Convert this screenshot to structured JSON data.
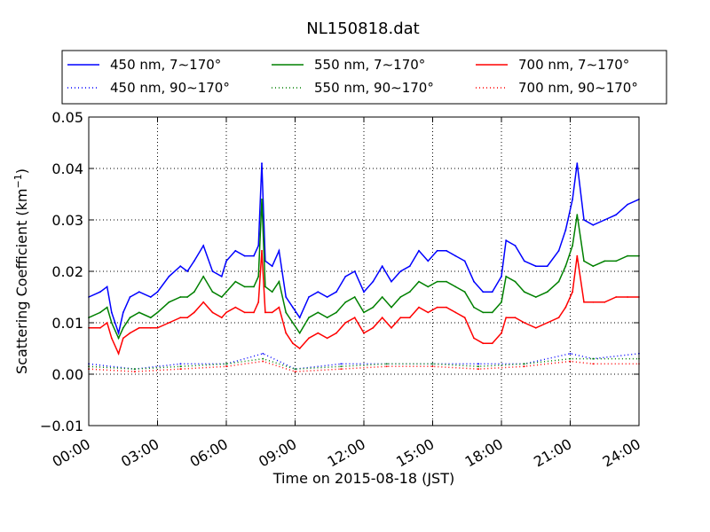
{
  "chart_data": {
    "type": "line",
    "title": "NL150818.dat",
    "xlabel": "Time on 2015-08-18 (JST)",
    "ylabel": "Scattering Coefficient (km",
    "ylabel_sup": "−1",
    "ylabel_close": ")",
    "x_unit": "hours since 00:00 JST",
    "xlim": [
      0,
      24
    ],
    "ylim": [
      -0.01,
      0.05
    ],
    "xticks": [
      0,
      3,
      6,
      9,
      12,
      15,
      18,
      21,
      24
    ],
    "xticklabels": [
      "00:00",
      "03:00",
      "06:00",
      "09:00",
      "12:00",
      "15:00",
      "18:00",
      "21:00",
      "24:00"
    ],
    "yticks": [
      -0.01,
      0.0,
      0.01,
      0.02,
      0.03,
      0.04,
      0.05
    ],
    "yticklabels": [
      "−0.01",
      "0.00",
      "0.01",
      "0.02",
      "0.03",
      "0.04",
      "0.05"
    ],
    "grid": true,
    "legend_position": "top",
    "series": [
      {
        "name": "450 nm, 7∼170°",
        "color": "#0000ff",
        "style": "solid",
        "x": [
          0,
          0.5,
          0.8,
          1.0,
          1.3,
          1.5,
          1.8,
          2.2,
          2.7,
          3.0,
          3.5,
          4.0,
          4.3,
          4.6,
          5.0,
          5.4,
          5.8,
          6.0,
          6.4,
          6.8,
          7.2,
          7.4,
          7.55,
          7.7,
          8.0,
          8.3,
          8.6,
          8.9,
          9.2,
          9.6,
          10.0,
          10.4,
          10.8,
          11.2,
          11.6,
          12.0,
          12.4,
          12.8,
          13.2,
          13.6,
          14.0,
          14.4,
          14.8,
          15.2,
          15.6,
          16.0,
          16.4,
          16.8,
          17.2,
          17.6,
          18.0,
          18.2,
          18.6,
          19.0,
          19.5,
          20.0,
          20.5,
          20.8,
          21.1,
          21.3,
          21.6,
          22.0,
          22.5,
          23.0,
          23.5,
          24.0
        ],
        "y": [
          0.015,
          0.016,
          0.017,
          0.012,
          0.008,
          0.012,
          0.015,
          0.016,
          0.015,
          0.016,
          0.019,
          0.021,
          0.02,
          0.022,
          0.025,
          0.02,
          0.019,
          0.022,
          0.024,
          0.023,
          0.023,
          0.025,
          0.041,
          0.022,
          0.021,
          0.024,
          0.015,
          0.013,
          0.011,
          0.015,
          0.016,
          0.015,
          0.016,
          0.019,
          0.02,
          0.016,
          0.018,
          0.021,
          0.018,
          0.02,
          0.021,
          0.024,
          0.022,
          0.024,
          0.024,
          0.023,
          0.022,
          0.018,
          0.016,
          0.016,
          0.019,
          0.026,
          0.025,
          0.022,
          0.021,
          0.021,
          0.024,
          0.028,
          0.034,
          0.041,
          0.03,
          0.029,
          0.03,
          0.031,
          0.033,
          0.034
        ]
      },
      {
        "name": "450 nm, 90∼170°",
        "color": "#0000ff",
        "style": "dotted",
        "x": [
          0,
          2,
          4,
          6,
          7.6,
          9,
          11,
          13,
          15,
          17,
          19,
          21,
          22,
          24
        ],
        "y": [
          0.002,
          0.001,
          0.002,
          0.002,
          0.004,
          0.001,
          0.002,
          0.002,
          0.002,
          0.002,
          0.002,
          0.004,
          0.003,
          0.004
        ]
      },
      {
        "name": "550 nm, 7∼170°",
        "color": "#008000",
        "style": "solid",
        "x": [
          0,
          0.5,
          0.8,
          1.0,
          1.3,
          1.5,
          1.8,
          2.2,
          2.7,
          3.0,
          3.5,
          4.0,
          4.3,
          4.6,
          5.0,
          5.4,
          5.8,
          6.0,
          6.4,
          6.8,
          7.2,
          7.4,
          7.55,
          7.7,
          8.0,
          8.3,
          8.6,
          8.9,
          9.2,
          9.6,
          10.0,
          10.4,
          10.8,
          11.2,
          11.6,
          12.0,
          12.4,
          12.8,
          13.2,
          13.6,
          14.0,
          14.4,
          14.8,
          15.2,
          15.6,
          16.0,
          16.4,
          16.8,
          17.2,
          17.6,
          18.0,
          18.2,
          18.6,
          19.0,
          19.5,
          20.0,
          20.5,
          20.8,
          21.1,
          21.3,
          21.6,
          22.0,
          22.5,
          23.0,
          23.5,
          24.0
        ],
        "y": [
          0.011,
          0.012,
          0.013,
          0.01,
          0.007,
          0.009,
          0.011,
          0.012,
          0.011,
          0.012,
          0.014,
          0.015,
          0.015,
          0.016,
          0.019,
          0.016,
          0.015,
          0.016,
          0.018,
          0.017,
          0.017,
          0.019,
          0.034,
          0.017,
          0.016,
          0.018,
          0.012,
          0.01,
          0.008,
          0.011,
          0.012,
          0.011,
          0.012,
          0.014,
          0.015,
          0.012,
          0.013,
          0.015,
          0.013,
          0.015,
          0.016,
          0.018,
          0.017,
          0.018,
          0.018,
          0.017,
          0.016,
          0.013,
          0.012,
          0.012,
          0.014,
          0.019,
          0.018,
          0.016,
          0.015,
          0.016,
          0.018,
          0.021,
          0.025,
          0.031,
          0.022,
          0.021,
          0.022,
          0.022,
          0.023,
          0.023
        ]
      },
      {
        "name": "550 nm, 90∼170°",
        "color": "#008000",
        "style": "dotted",
        "x": [
          0,
          2,
          4,
          6,
          7.6,
          9,
          11,
          13,
          15,
          17,
          19,
          21,
          22,
          24
        ],
        "y": [
          0.0015,
          0.001,
          0.0015,
          0.002,
          0.003,
          0.001,
          0.0015,
          0.002,
          0.002,
          0.0015,
          0.002,
          0.003,
          0.003,
          0.003
        ]
      },
      {
        "name": "700 nm, 7∼170°",
        "color": "#ff0000",
        "style": "solid",
        "x": [
          0,
          0.5,
          0.8,
          1.0,
          1.3,
          1.5,
          1.8,
          2.2,
          2.7,
          3.0,
          3.5,
          4.0,
          4.3,
          4.6,
          5.0,
          5.4,
          5.8,
          6.0,
          6.4,
          6.8,
          7.2,
          7.4,
          7.55,
          7.7,
          8.0,
          8.3,
          8.6,
          8.9,
          9.2,
          9.6,
          10.0,
          10.4,
          10.8,
          11.2,
          11.6,
          12.0,
          12.4,
          12.8,
          13.2,
          13.6,
          14.0,
          14.4,
          14.8,
          15.2,
          15.6,
          16.0,
          16.4,
          16.8,
          17.2,
          17.6,
          18.0,
          18.2,
          18.6,
          19.0,
          19.5,
          20.0,
          20.5,
          20.8,
          21.1,
          21.3,
          21.6,
          22.0,
          22.5,
          23.0,
          23.5,
          24.0
        ],
        "y": [
          0.009,
          0.009,
          0.01,
          0.007,
          0.004,
          0.007,
          0.008,
          0.009,
          0.009,
          0.009,
          0.01,
          0.011,
          0.011,
          0.012,
          0.014,
          0.012,
          0.011,
          0.012,
          0.013,
          0.012,
          0.012,
          0.014,
          0.024,
          0.012,
          0.012,
          0.013,
          0.008,
          0.006,
          0.005,
          0.007,
          0.008,
          0.007,
          0.008,
          0.01,
          0.011,
          0.008,
          0.009,
          0.011,
          0.009,
          0.011,
          0.011,
          0.013,
          0.012,
          0.013,
          0.013,
          0.012,
          0.011,
          0.007,
          0.006,
          0.006,
          0.008,
          0.011,
          0.011,
          0.01,
          0.009,
          0.01,
          0.011,
          0.013,
          0.016,
          0.023,
          0.014,
          0.014,
          0.014,
          0.015,
          0.015,
          0.015
        ]
      },
      {
        "name": "700 nm, 90∼170°",
        "color": "#ff0000",
        "style": "dotted",
        "x": [
          0,
          2,
          4,
          6,
          7.6,
          9,
          11,
          13,
          15,
          17,
          19,
          21,
          22,
          24
        ],
        "y": [
          0.001,
          0.0005,
          0.001,
          0.0015,
          0.0025,
          0.0005,
          0.001,
          0.0015,
          0.0015,
          0.001,
          0.0015,
          0.0025,
          0.002,
          0.002
        ]
      }
    ]
  }
}
